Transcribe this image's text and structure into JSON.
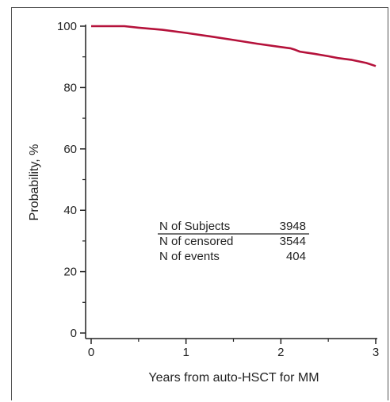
{
  "chart_data": {
    "type": "line",
    "title": "",
    "xlabel": "Years from auto-HSCT for MM",
    "ylabel": "Probability, %",
    "xlim": [
      0,
      3
    ],
    "ylim": [
      0,
      100
    ],
    "x_ticks": [
      0,
      1,
      2,
      3
    ],
    "x_tick_labels": [
      "0",
      "1",
      "2",
      "3"
    ],
    "x_minor_ticks": [
      0.5,
      1.5,
      2.5
    ],
    "y_ticks": [
      0,
      20,
      40,
      60,
      80,
      100
    ],
    "y_tick_labels": [
      "0",
      "20",
      "40",
      "60",
      "80",
      "100"
    ],
    "y_minor_ticks": [
      10,
      30,
      50,
      70,
      90
    ],
    "grid": false,
    "series": [
      {
        "name": "",
        "color": "#b5123b",
        "x": [
          0,
          0.15,
          0.35,
          0.5,
          0.75,
          1.0,
          1.25,
          1.5,
          1.75,
          2.0,
          2.1,
          2.15,
          2.2,
          2.35,
          2.5,
          2.6,
          2.75,
          2.9,
          3.0
        ],
        "y": [
          100,
          100,
          100,
          99.5,
          98.8,
          97.8,
          96.7,
          95.5,
          94.3,
          93.2,
          92.8,
          92.3,
          91.7,
          91.0,
          90.2,
          89.6,
          89.0,
          88.0,
          87.0
        ]
      }
    ],
    "table": {
      "rows": [
        {
          "label": "N of Subjects",
          "value": "3948"
        },
        {
          "label": "N of censored",
          "value": "3544"
        },
        {
          "label": "N of events",
          "value": "404"
        }
      ]
    }
  }
}
